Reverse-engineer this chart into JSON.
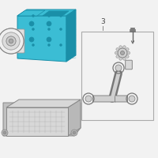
{
  "bg_color": "#f2f2f2",
  "dsc_fill": "#3bbdd4",
  "dsc_dark": "#1a8fa8",
  "dsc_light": "#6dd4e8",
  "dsc_outline": "#1a8fa8",
  "ecu_fill": "#d8d8d8",
  "ecu_dark": "#aaaaaa",
  "ecu_outline": "#888888",
  "part_outline": "#999999",
  "part_fill": "#e8e8e8",
  "box_outline": "#aaaaaa",
  "label_color": "#444444",
  "fig_w": 2.0,
  "fig_h": 2.0,
  "dpi": 100
}
